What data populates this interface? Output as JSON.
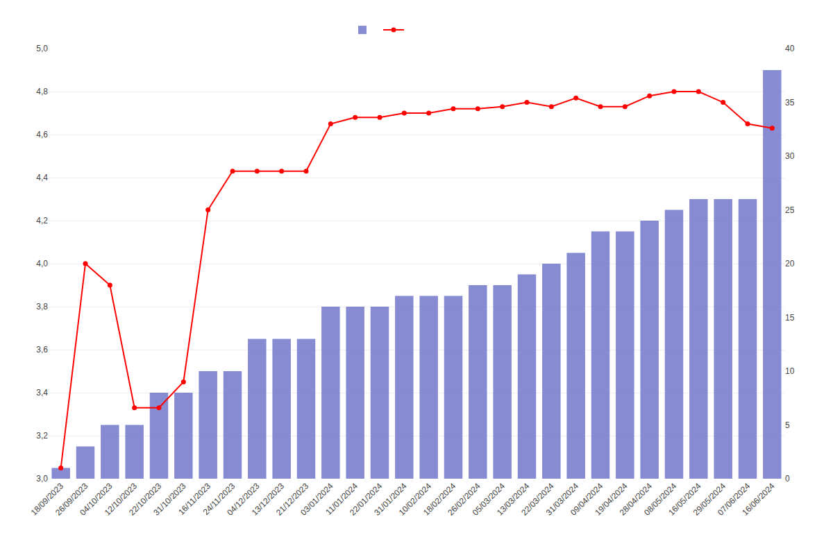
{
  "chart_data": {
    "type": "bar",
    "categories": [
      "18/09/2023",
      "26/09/2023",
      "04/10/2023",
      "12/10/2023",
      "22/10/2023",
      "31/10/2023",
      "16/11/2023",
      "24/11/2023",
      "04/12/2023",
      "13/12/2023",
      "21/12/2023",
      "03/01/2024",
      "11/01/2024",
      "22/01/2024",
      "31/01/2024",
      "10/02/2024",
      "18/02/2024",
      "26/02/2024",
      "05/03/2024",
      "13/03/2024",
      "22/03/2024",
      "31/03/2024",
      "09/04/2024",
      "19/04/2024",
      "28/04/2024",
      "08/05/2024",
      "16/05/2024",
      "29/05/2024",
      "07/06/2024",
      "16/06/2024"
    ],
    "series": [
      {
        "type": "line",
        "color": "#FF0000",
        "marker": "circle",
        "values": [
          3.05,
          4.0,
          3.9,
          3.33,
          3.33,
          3.45,
          4.25,
          4.43,
          4.43,
          4.43,
          4.43,
          4.65,
          4.68,
          4.68,
          4.7,
          4.7,
          4.72,
          4.72,
          4.73,
          4.75,
          4.73,
          4.77,
          4.73,
          4.73,
          4.78,
          4.8,
          4.8,
          4.75,
          4.65,
          4.63
        ]
      },
      {
        "type": "bar",
        "color": "#7B7FCD",
        "axis": "y2",
        "values": [
          1,
          3,
          5,
          5,
          8,
          8,
          10,
          10,
          13,
          13,
          13,
          16,
          16,
          16,
          17,
          17,
          17,
          18,
          18,
          19,
          20,
          21,
          23,
          23,
          24,
          25,
          26,
          26,
          26,
          38
        ]
      }
    ],
    "ylim": [
      3.0,
      5.0
    ],
    "yticks": [
      {
        "value": 3.0,
        "label": "3,0"
      },
      {
        "value": 3.2,
        "label": "3,2"
      },
      {
        "value": 3.4,
        "label": "3,4"
      },
      {
        "value": 3.6,
        "label": "3,6"
      },
      {
        "value": 3.8,
        "label": "3,8"
      },
      {
        "value": 4.0,
        "label": "4,0"
      },
      {
        "value": 4.2,
        "label": "4,2"
      },
      {
        "value": 4.4,
        "label": "4,4"
      },
      {
        "value": 4.6,
        "label": "4,6"
      },
      {
        "value": 4.8,
        "label": "4,8"
      },
      {
        "value": 5.0,
        "label": "5,0"
      }
    ],
    "y2lim": [
      0,
      40
    ],
    "y2ticks": [
      0,
      5,
      10,
      15,
      20,
      25,
      30,
      35,
      40
    ],
    "grid": true,
    "legend": "top"
  }
}
